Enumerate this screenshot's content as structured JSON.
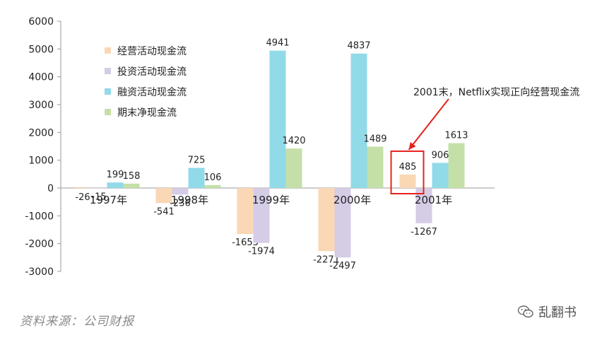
{
  "chart_data": {
    "type": "bar",
    "categories": [
      "1997年",
      "1998年",
      "1999年",
      "2000年",
      "2001年"
    ],
    "series": [
      {
        "name": "经营活动现金流",
        "color": "#FAD7B5",
        "values": [
          -26,
          -541,
          -1653,
          -2271,
          485
        ]
      },
      {
        "name": "投资活动现金流",
        "color": "#D5CCE6",
        "values": [
          -15,
          -236,
          -1974,
          -2497,
          -1267
        ]
      },
      {
        "name": "融资活动现金流",
        "color": "#91DAE8",
        "values": [
          199,
          725,
          4941,
          4837,
          906
        ]
      },
      {
        "name": "期末净现金流",
        "color": "#C4E0A8",
        "values": [
          158,
          106,
          1420,
          1489,
          1613
        ]
      }
    ],
    "ylim": [
      -3000,
      6000
    ],
    "yticks": [
      6000,
      5000,
      4000,
      3000,
      2000,
      1000,
      0,
      -1000,
      -2000,
      -3000
    ],
    "legend_position": "top-left",
    "grid": false,
    "title": "",
    "xlabel": "",
    "ylabel": "",
    "annotation": {
      "text": "2001末，Netflix实现正向经营现金流",
      "highlight_category": "2001年",
      "highlight_series": "经营活动现金流",
      "color": "#e8201c"
    }
  },
  "footer": {
    "source": "资料来源：公司财报",
    "brand": "乱翻书"
  }
}
